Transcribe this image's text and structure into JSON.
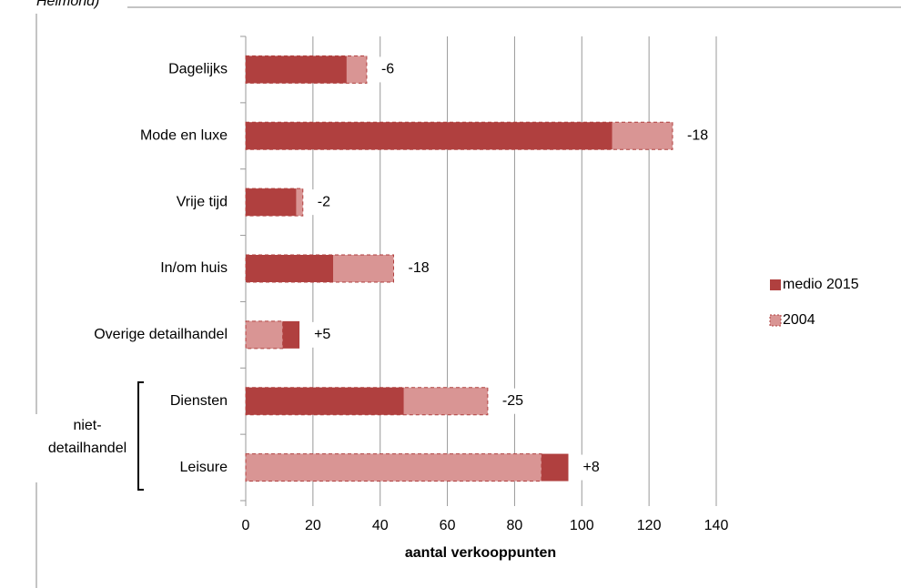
{
  "chart_data": {
    "type": "bar",
    "orientation": "horizontal",
    "overlap": true,
    "title": "Helmond)",
    "categories": [
      "Dagelijks",
      "Mode en luxe",
      "Vrije tijd",
      "In/om huis",
      "Overige detailhandel",
      "Diensten",
      "Leisure"
    ],
    "series": [
      {
        "name": "medio 2015",
        "color": "#b0403f",
        "values": [
          30,
          109,
          15,
          26,
          16,
          47,
          96
        ]
      },
      {
        "name": "2004",
        "color": "#d99594",
        "dashed": true,
        "values": [
          36,
          127,
          17,
          44,
          11,
          72,
          88
        ]
      }
    ],
    "annotations": [
      "-6",
      "-18",
      "-2",
      "-18",
      "+5",
      "-25",
      "+8"
    ],
    "annotation_color": "#c0504d",
    "group_label": [
      "niet-",
      "detailhandel"
    ],
    "xlabel": "aantal verkooppunten",
    "xlim": [
      0,
      140
    ],
    "xticks": [
      0,
      20,
      40,
      60,
      80,
      100,
      120,
      140
    ],
    "grid": true,
    "legend": "right"
  }
}
